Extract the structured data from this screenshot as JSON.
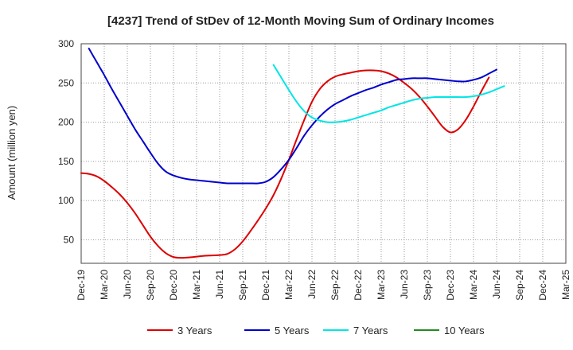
{
  "chart_data": {
    "type": "line",
    "title": "[4237]  Trend of StDev of 12-Month Moving Sum of Ordinary Incomes",
    "ylabel": "Amount (million yen)",
    "xlabel": "",
    "ylim": [
      20,
      300
    ],
    "yticks": [
      50,
      100,
      150,
      200,
      250,
      300
    ],
    "x_range": [
      0,
      63
    ],
    "x_ticks": [
      {
        "x": 0,
        "label": "Dec-19"
      },
      {
        "x": 3,
        "label": "Mar-20"
      },
      {
        "x": 6,
        "label": "Jun-20"
      },
      {
        "x": 9,
        "label": "Sep-20"
      },
      {
        "x": 12,
        "label": "Dec-20"
      },
      {
        "x": 15,
        "label": "Mar-21"
      },
      {
        "x": 18,
        "label": "Jun-21"
      },
      {
        "x": 21,
        "label": "Sep-21"
      },
      {
        "x": 24,
        "label": "Dec-21"
      },
      {
        "x": 27,
        "label": "Mar-22"
      },
      {
        "x": 30,
        "label": "Jun-22"
      },
      {
        "x": 33,
        "label": "Sep-22"
      },
      {
        "x": 36,
        "label": "Dec-22"
      },
      {
        "x": 39,
        "label": "Mar-23"
      },
      {
        "x": 42,
        "label": "Jun-23"
      },
      {
        "x": 45,
        "label": "Sep-23"
      },
      {
        "x": 48,
        "label": "Dec-23"
      },
      {
        "x": 51,
        "label": "Mar-24"
      },
      {
        "x": 54,
        "label": "Jun-24"
      },
      {
        "x": 57,
        "label": "Sep-24"
      },
      {
        "x": 60,
        "label": "Dec-24"
      },
      {
        "x": 63,
        "label": "Mar-25"
      }
    ],
    "grid": true,
    "legend_position": "bottom",
    "series": [
      {
        "name": "3 Years",
        "color": "#dd0000",
        "points": [
          [
            0,
            135
          ],
          [
            1,
            134
          ],
          [
            2,
            131
          ],
          [
            3,
            125
          ],
          [
            4,
            117
          ],
          [
            5,
            108
          ],
          [
            6,
            97
          ],
          [
            7,
            84
          ],
          [
            8,
            69
          ],
          [
            9,
            54
          ],
          [
            10,
            42
          ],
          [
            11,
            33
          ],
          [
            12,
            28
          ],
          [
            13,
            27
          ],
          [
            14,
            27.5
          ],
          [
            15,
            28.5
          ],
          [
            16,
            29.5
          ],
          [
            17,
            30
          ],
          [
            18,
            30.5
          ],
          [
            19,
            32
          ],
          [
            20,
            38
          ],
          [
            21,
            48
          ],
          [
            22,
            61
          ],
          [
            23,
            75
          ],
          [
            24,
            90
          ],
          [
            25,
            107
          ],
          [
            26,
            128
          ],
          [
            27,
            152
          ],
          [
            28,
            178
          ],
          [
            29,
            203
          ],
          [
            30,
            226
          ],
          [
            31,
            242
          ],
          [
            32,
            252
          ],
          [
            33,
            258
          ],
          [
            34,
            261
          ],
          [
            35,
            263
          ],
          [
            36,
            265
          ],
          [
            37,
            266
          ],
          [
            38,
            266
          ],
          [
            39,
            265
          ],
          [
            40,
            262
          ],
          [
            41,
            257
          ],
          [
            42,
            250
          ],
          [
            43,
            242
          ],
          [
            44,
            232
          ],
          [
            45,
            220
          ],
          [
            46,
            207
          ],
          [
            47,
            194
          ],
          [
            48,
            187
          ],
          [
            49,
            191
          ],
          [
            50,
            203
          ],
          [
            51,
            220
          ],
          [
            52,
            239
          ],
          [
            53,
            257
          ]
        ]
      },
      {
        "name": "5 Years",
        "color": "#0000cc",
        "points": [
          [
            1,
            294
          ],
          [
            2,
            277
          ],
          [
            3,
            260
          ],
          [
            4,
            242
          ],
          [
            5,
            225
          ],
          [
            6,
            208
          ],
          [
            7,
            191
          ],
          [
            8,
            176
          ],
          [
            9,
            161
          ],
          [
            10,
            147
          ],
          [
            11,
            137
          ],
          [
            12,
            132
          ],
          [
            13,
            129
          ],
          [
            14,
            127
          ],
          [
            15,
            126
          ],
          [
            16,
            125
          ],
          [
            17,
            124
          ],
          [
            18,
            123
          ],
          [
            19,
            122
          ],
          [
            20,
            122
          ],
          [
            21,
            122
          ],
          [
            22,
            122
          ],
          [
            23,
            122
          ],
          [
            24,
            124
          ],
          [
            25,
            130
          ],
          [
            26,
            140
          ],
          [
            27,
            152
          ],
          [
            28,
            167
          ],
          [
            29,
            183
          ],
          [
            30,
            196
          ],
          [
            31,
            207
          ],
          [
            32,
            216
          ],
          [
            33,
            223
          ],
          [
            34,
            228
          ],
          [
            35,
            233
          ],
          [
            36,
            237
          ],
          [
            37,
            241
          ],
          [
            38,
            244
          ],
          [
            39,
            248
          ],
          [
            40,
            251
          ],
          [
            41,
            254
          ],
          [
            42,
            255
          ],
          [
            43,
            256
          ],
          [
            44,
            256
          ],
          [
            45,
            256
          ],
          [
            46,
            255
          ],
          [
            47,
            254
          ],
          [
            48,
            253
          ],
          [
            49,
            252
          ],
          [
            50,
            252
          ],
          [
            51,
            254
          ],
          [
            52,
            257
          ],
          [
            53,
            262
          ],
          [
            54,
            267
          ]
        ]
      },
      {
        "name": "7 Years",
        "color": "#00e5e5",
        "points": [
          [
            25,
            273
          ],
          [
            26,
            257
          ],
          [
            27,
            241
          ],
          [
            28,
            226
          ],
          [
            29,
            214
          ],
          [
            30,
            206
          ],
          [
            31,
            202
          ],
          [
            32,
            200
          ],
          [
            33,
            200
          ],
          [
            34,
            201
          ],
          [
            35,
            203
          ],
          [
            36,
            206
          ],
          [
            37,
            209
          ],
          [
            38,
            212
          ],
          [
            39,
            215
          ],
          [
            40,
            219
          ],
          [
            41,
            222
          ],
          [
            42,
            225
          ],
          [
            43,
            228
          ],
          [
            44,
            230
          ],
          [
            45,
            231
          ],
          [
            46,
            232
          ],
          [
            47,
            232
          ],
          [
            48,
            232
          ],
          [
            49,
            232
          ],
          [
            50,
            232
          ],
          [
            51,
            233
          ],
          [
            52,
            235
          ],
          [
            53,
            238
          ],
          [
            54,
            242
          ],
          [
            55,
            246
          ]
        ]
      },
      {
        "name": "10 Years",
        "color": "#228b22",
        "points": []
      }
    ]
  }
}
